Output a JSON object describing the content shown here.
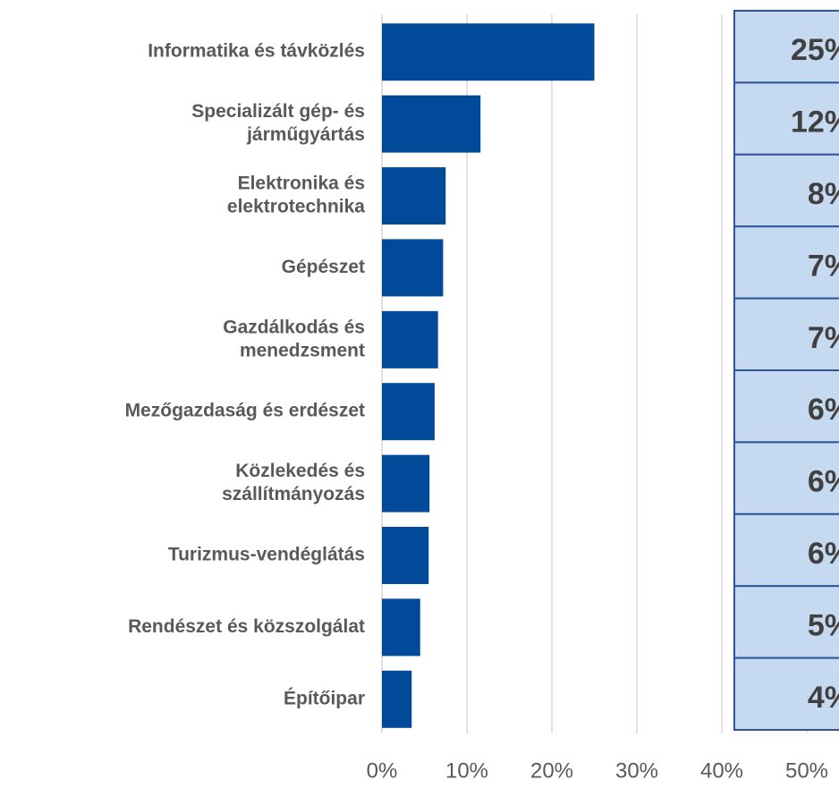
{
  "chart_data": {
    "type": "bar",
    "orientation": "horizontal",
    "categories": [
      [
        "Informatika és távközlés"
      ],
      [
        "Specializált gép- és",
        "járműgyártás"
      ],
      [
        "Elektronika és",
        "elektrotechnika"
      ],
      [
        "Gépészet"
      ],
      [
        "Gazdálkodás és",
        "menedzsment"
      ],
      [
        "Mezőgazdaság és erdészet"
      ],
      [
        "Közlekedés és",
        "szállítmányozás"
      ],
      [
        "Turizmus-vendéglátás"
      ],
      [
        "Rendészet és közszolgálat"
      ],
      [
        "Építőipar"
      ]
    ],
    "values": [
      25,
      11.6,
      7.5,
      7.2,
      6.6,
      6.2,
      5.6,
      5.5,
      4.5,
      3.5
    ],
    "value_labels": [
      "25%",
      "12%",
      "8%",
      "7%",
      "7%",
      "6%",
      "6%",
      "6%",
      "5%",
      "4%"
    ],
    "color": "#004a99",
    "xlim": [
      0,
      50
    ],
    "xticks": [
      {
        "value": 0,
        "label": "0%"
      },
      {
        "value": 10,
        "label": "10%"
      },
      {
        "value": 20,
        "label": "20%"
      },
      {
        "value": 30,
        "label": "30%"
      },
      {
        "value": 40,
        "label": "40%"
      },
      {
        "value": 50,
        "label": "50%"
      }
    ],
    "grid": true
  }
}
